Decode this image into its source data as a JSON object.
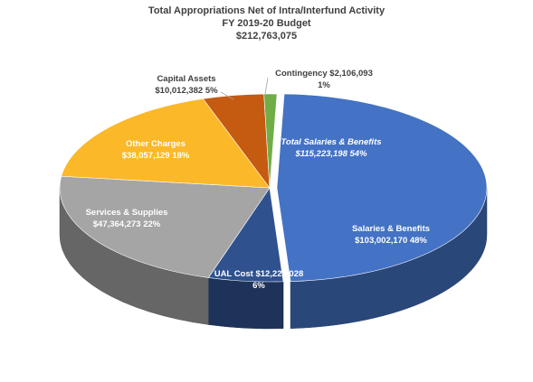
{
  "chart_data": {
    "type": "pie",
    "title": "Total Appropriations Net of Intra/Interfund Activity",
    "subtitle": "FY 2019-20 Budget",
    "total": "$212,763,075",
    "slices": [
      {
        "name": "Salaries & Benefits",
        "value": 103002170,
        "value_label": "$103,002,170",
        "pct_label": "48%",
        "color": "#4472C4",
        "label_color": "#ffffff"
      },
      {
        "name": "UAL Cost",
        "value": 12221028,
        "value_label": "$12,221,028",
        "pct_label": "6%",
        "color": "#2F528F",
        "label_color": "#ffffff"
      },
      {
        "name": "Services & Supplies",
        "value": 47364273,
        "value_label": "$47,364,273",
        "pct_label": "22%",
        "color": "#A5A5A5",
        "label_color": "#ffffff"
      },
      {
        "name": "Other Charges",
        "value": 38057129,
        "value_label": "$38,057,129",
        "pct_label": "18%",
        "color": "#FBB829",
        "label_color": "#ffffff"
      },
      {
        "name": "Capital Assets",
        "value": 10012382,
        "value_label": "$10,012,382",
        "pct_label": "5%",
        "color": "#C55A11",
        "label_color": "#404040"
      },
      {
        "name": "Contingency",
        "value": 2106093,
        "value_label": "$2,106,093",
        "pct_label": "1%",
        "color": "#70AD47",
        "label_color": "#404040"
      }
    ],
    "group_annotation": {
      "name": "Total Salaries & Benefits",
      "value": 115223198,
      "value_label": "$115,223,198",
      "pct_label": "54%"
    }
  }
}
